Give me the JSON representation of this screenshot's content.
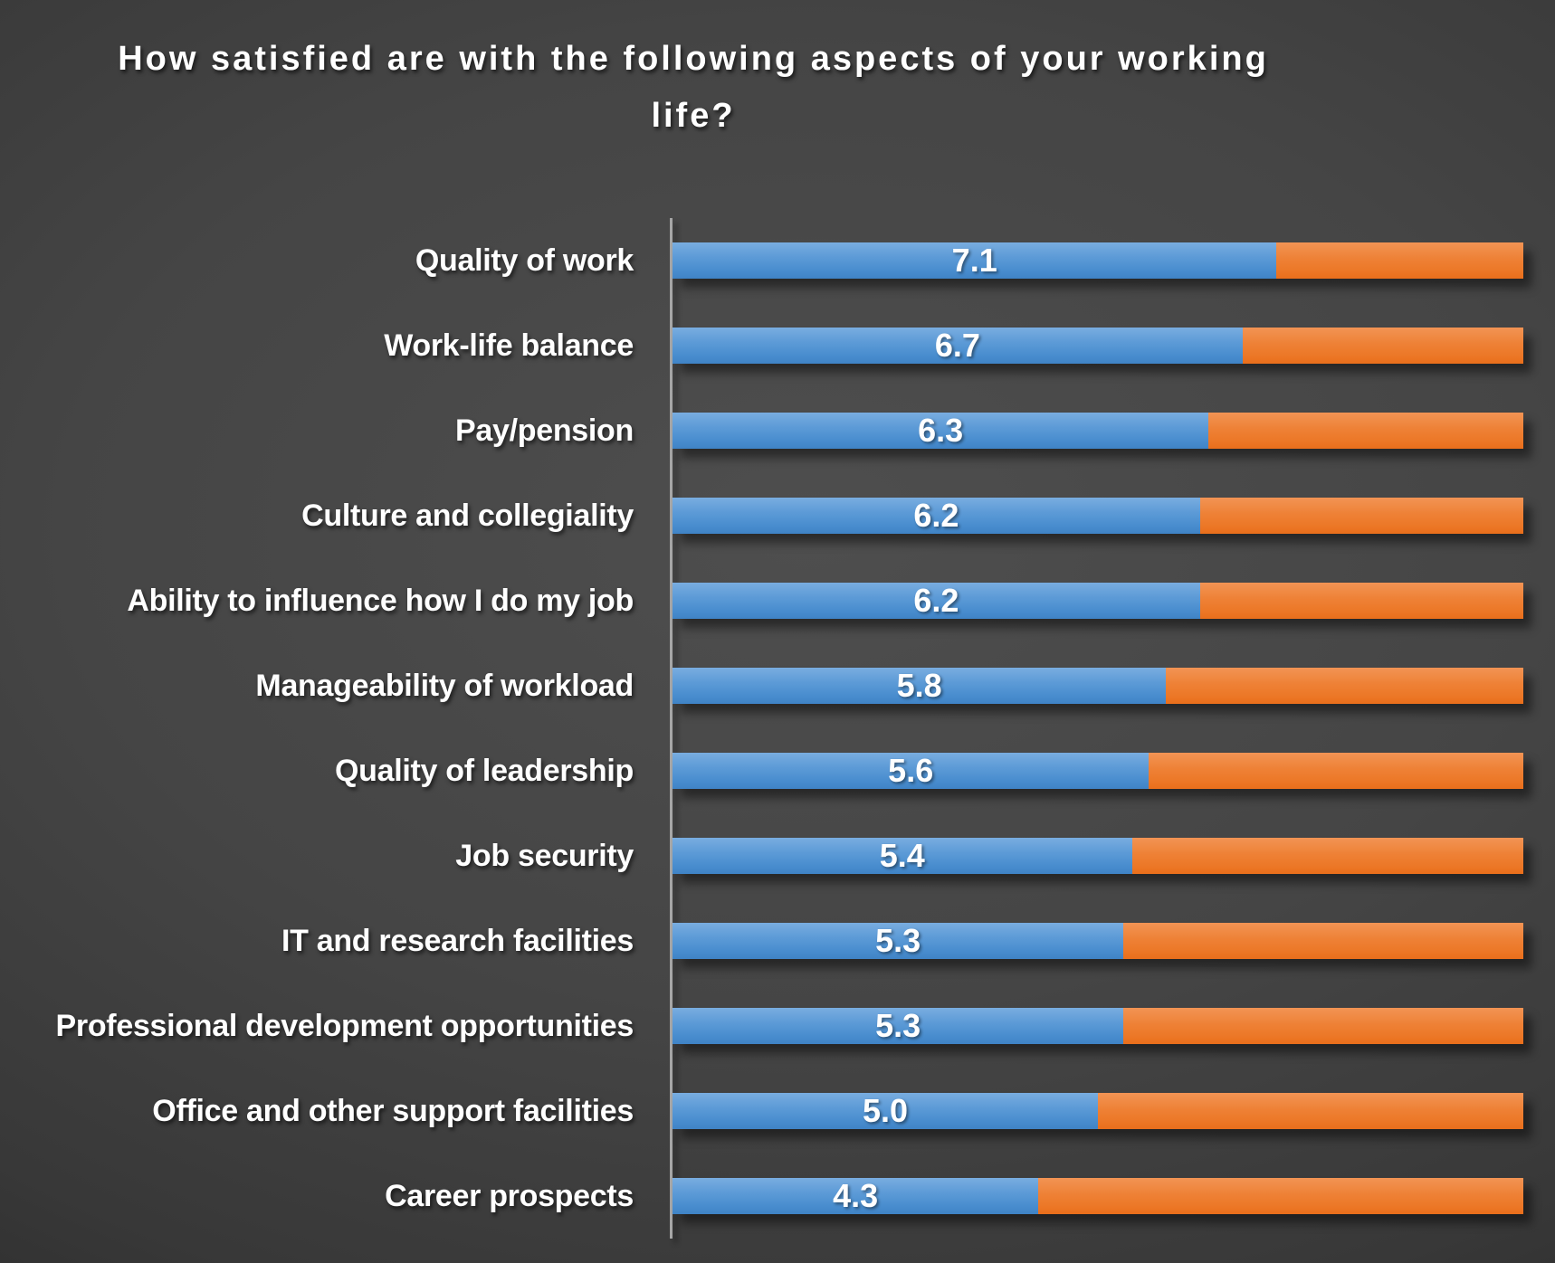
{
  "title": {
    "line1": "How satisfied are with the following aspects of your working",
    "line2": "life?",
    "full_text": "How satisfied are with the following aspects of your working life?"
  },
  "colors": {
    "satisfied_blue": "#4e96d2",
    "remainder_orange": "#ed7d31",
    "axis_line": "#a6a6a6",
    "text": "#ffffff",
    "background_center": "#4e4e4e",
    "background_edge": "#1f1f1f"
  },
  "chart_data": {
    "type": "bar",
    "orientation": "horizontal",
    "stacked": true,
    "title": "How satisfied are with the following aspects of your working life?",
    "xlabel": "",
    "ylabel": "",
    "xlim": [
      0,
      10
    ],
    "grid": false,
    "legend": "none",
    "categories": [
      "Quality of work",
      "Work-life balance",
      "Pay/pension",
      "Culture and collegiality",
      "Ability to influence how I do my job",
      "Manageability of workload",
      "Quality of leadership",
      "Job security",
      "IT and research facilities",
      "Professional development opportunities",
      "Office and other support facilities",
      "Career prospects"
    ],
    "series": [
      {
        "name": "satisfaction-score",
        "color": "#4e96d2",
        "values": [
          7.1,
          6.7,
          6.3,
          6.2,
          6.2,
          5.8,
          5.6,
          5.4,
          5.3,
          5.3,
          5.0,
          4.3
        ],
        "value_labels": [
          "7.1",
          "6.7",
          "6.3",
          "6.2",
          "6.2",
          "5.8",
          "5.6",
          "5.4",
          "5.3",
          "5.3",
          "5.0",
          "4.3"
        ]
      },
      {
        "name": "remainder-to-10",
        "color": "#ed7d31",
        "values": [
          2.9,
          3.3,
          3.7,
          3.8,
          3.8,
          4.2,
          4.4,
          4.6,
          4.7,
          4.7,
          5.0,
          5.7
        ],
        "value_labels": [
          "",
          "",
          "",
          "",
          "",
          "",
          "",
          "",
          "",
          "",
          "",
          ""
        ]
      }
    ]
  }
}
